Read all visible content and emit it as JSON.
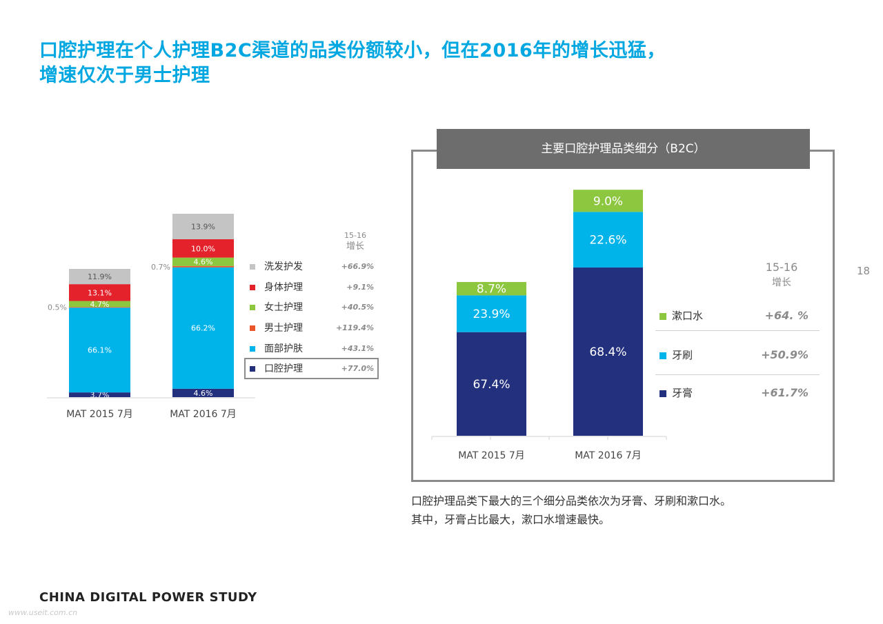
{
  "title": {
    "line1": "口腔护理在个人护理B2C渠道的品类份额较小，但在2016年的增长迅猛，",
    "line2": "增速仅次于男士护理"
  },
  "left_growth_header": {
    "line1": "15-16",
    "line2": "增长"
  },
  "right_panel_title": "主要口腔护理品类细分（B2C）",
  "right_growth_header": {
    "line1": "15-16",
    "line2": "增长"
  },
  "note": {
    "line1": "口腔护理品类下最大的三个细分品类依次为牙膏、牙刷和漱口水。",
    "line2": "其中，牙膏占比最大，漱口水增速最快。"
  },
  "page_number": "18",
  "footer": "CHINA DIGITAL POWER STUDY",
  "watermark": "www.useit.com.cn",
  "chart_data": [
    {
      "type": "bar",
      "stacked": true,
      "categories": [
        "MAT 2015 7月",
        "MAT 2016 7月"
      ],
      "series": [
        {
          "name": "口腔护理",
          "values": [
            3.7,
            4.6
          ],
          "labels": [
            "3.7%",
            "4.6%"
          ],
          "color": "#23307e",
          "growth": "+77.0%"
        },
        {
          "name": "面部护肤",
          "values": [
            66.1,
            66.2
          ],
          "labels": [
            "66.1%",
            "66.2%"
          ],
          "color": "#00b4ea",
          "growth": "+43.1%"
        },
        {
          "name": "男士护理",
          "values": [
            0.5,
            0.7
          ],
          "labels": [
            "0.5%",
            "0.7%"
          ],
          "color": "#e8562a",
          "growth": "+119.4%"
        },
        {
          "name": "女士护理",
          "values": [
            4.7,
            4.6
          ],
          "labels": [
            "4.7%",
            "4.6%"
          ],
          "color": "#8dc63f",
          "growth": "+40.5%"
        },
        {
          "name": "身体护理",
          "values": [
            13.1,
            10.0
          ],
          "labels": [
            "13.1%",
            "10.0%"
          ],
          "color": "#e3222b",
          "growth": "+9.1%"
        },
        {
          "name": "洗发护发",
          "values": [
            11.9,
            13.9
          ],
          "labels": [
            "11.9%",
            "13.9%"
          ],
          "color": "#c4c4c4",
          "growth": "+66.9%"
        }
      ],
      "bar_total_relative_size": [
        1.0,
        1.43
      ],
      "legend_order": [
        "洗发护发",
        "身体护理",
        "女士护理",
        "男士护理",
        "面部护肤",
        "口腔护理"
      ],
      "highlighted_series": "口腔护理",
      "legend_position": "right"
    },
    {
      "type": "bar",
      "stacked": true,
      "title": "主要口腔护理品类细分（B2C）",
      "categories": [
        "MAT 2015 7月",
        "MAT 2016 7月"
      ],
      "series": [
        {
          "name": "牙膏",
          "values": [
            67.4,
            68.4
          ],
          "labels": [
            "67.4%",
            "68.4%"
          ],
          "color": "#23307e",
          "growth": "+61.7%"
        },
        {
          "name": "牙刷",
          "values": [
            23.9,
            22.6
          ],
          "labels": [
            "23.9%",
            "22.6%"
          ],
          "color": "#00b4ea",
          "growth": "+50.9%"
        },
        {
          "name": "漱口水",
          "values": [
            8.7,
            9.0
          ],
          "labels": [
            "8.7%",
            "9.0%"
          ],
          "color": "#8dc63f",
          "growth": "+64. %"
        }
      ],
      "bar_total_relative_size": [
        1.0,
        1.6
      ],
      "legend_order": [
        "漱口水",
        "牙刷",
        "牙膏"
      ],
      "legend_position": "right"
    }
  ]
}
